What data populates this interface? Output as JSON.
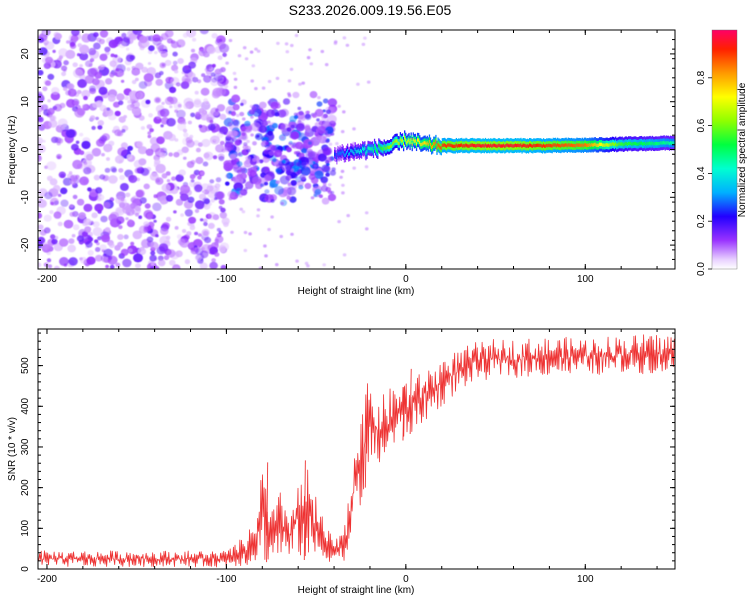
{
  "figure": {
    "title": "S233.2026.009.19.56.E05"
  },
  "chart_data": [
    {
      "type": "heatmap",
      "name": "spectrogram",
      "xlabel": "Height of straight line (km)",
      "ylabel": "Frequency (Hz)",
      "xlim": [
        -205,
        150
      ],
      "ylim": [
        -25,
        25
      ],
      "xticks": [
        -200,
        -100,
        0,
        100
      ],
      "yticks": [
        -20,
        -10,
        0,
        10,
        20
      ],
      "x_tick_labels": [
        "-200",
        "-100",
        "0",
        "100"
      ],
      "y_tick_labels": [
        "-20",
        "-10",
        "0",
        "10",
        "20"
      ],
      "colorbar": {
        "label": "Normalized spectral amplitude",
        "range": [
          0,
          1
        ],
        "ticks": [
          0.0,
          0.2,
          0.4,
          0.6,
          0.8
        ],
        "tick_labels": [
          "0.0",
          "0.2",
          "0.4",
          "0.6",
          "0.8"
        ]
      },
      "ridge": {
        "description": "narrow-band signal near 0-2 Hz from about -40 km to 150 km",
        "x": [
          -40,
          -30,
          -20,
          -10,
          0,
          10,
          20,
          40,
          60,
          80,
          100,
          120,
          150
        ],
        "center_hz": [
          -1.0,
          -0.5,
          0.0,
          0.5,
          2.0,
          1.0,
          0.8,
          0.8,
          0.8,
          0.8,
          0.9,
          1.1,
          1.4
        ],
        "amplitude": [
          0.25,
          0.35,
          0.45,
          0.6,
          0.7,
          0.75,
          0.9,
          0.95,
          0.95,
          0.9,
          0.85,
          0.55,
          0.45
        ]
      },
      "noise_regions": [
        {
          "x_range": [
            -205,
            -100
          ],
          "freq_range": [
            -25,
            25
          ],
          "amplitude": 0.15
        },
        {
          "x_range": [
            -100,
            -40
          ],
          "freq_range": [
            -12,
            12
          ],
          "amplitude": 0.25
        }
      ]
    },
    {
      "type": "line",
      "name": "snr",
      "xlabel": "Height of straight line (km)",
      "ylabel": "SNR (10 * v/v)",
      "xlim": [
        -205,
        150
      ],
      "ylim": [
        0,
        590
      ],
      "xticks": [
        -200,
        -100,
        0,
        100
      ],
      "yticks": [
        0,
        100,
        200,
        300,
        400,
        500
      ],
      "x_tick_labels": [
        "-200",
        "-100",
        "0",
        "100"
      ],
      "y_tick_labels": [
        "0",
        "100",
        "200",
        "300",
        "400",
        "500"
      ],
      "color": "#ee3333",
      "envelope": {
        "x": [
          -205,
          -150,
          -100,
          -90,
          -85,
          -80,
          -75,
          -70,
          -65,
          -60,
          -55,
          -50,
          -45,
          -40,
          -35,
          -30,
          -28,
          -25,
          -22,
          -20,
          -15,
          -10,
          -5,
          0,
          5,
          10,
          15,
          20,
          25,
          30,
          40,
          50,
          60,
          80,
          100,
          120,
          150
        ],
        "min": [
          5,
          5,
          5,
          8,
          10,
          20,
          15,
          25,
          15,
          30,
          20,
          10,
          15,
          20,
          20,
          30,
          80,
          150,
          200,
          240,
          250,
          270,
          300,
          320,
          340,
          360,
          380,
          400,
          420,
          440,
          460,
          470,
          470,
          475,
          475,
          480,
          480
        ],
        "max": [
          45,
          45,
          45,
          80,
          110,
          260,
          140,
          190,
          150,
          210,
          250,
          180,
          110,
          70,
          90,
          250,
          400,
          420,
          450,
          470,
          420,
          440,
          460,
          470,
          470,
          490,
          500,
          520,
          530,
          540,
          560,
          565,
          565,
          570,
          570,
          575,
          580
        ]
      },
      "spikes": [
        {
          "x": -77,
          "y": 262
        },
        {
          "x": -56,
          "y": 267
        },
        {
          "x": -22,
          "y": 360
        },
        {
          "x": -1,
          "y": 447
        },
        {
          "x": 3,
          "y": 492
        }
      ]
    }
  ]
}
